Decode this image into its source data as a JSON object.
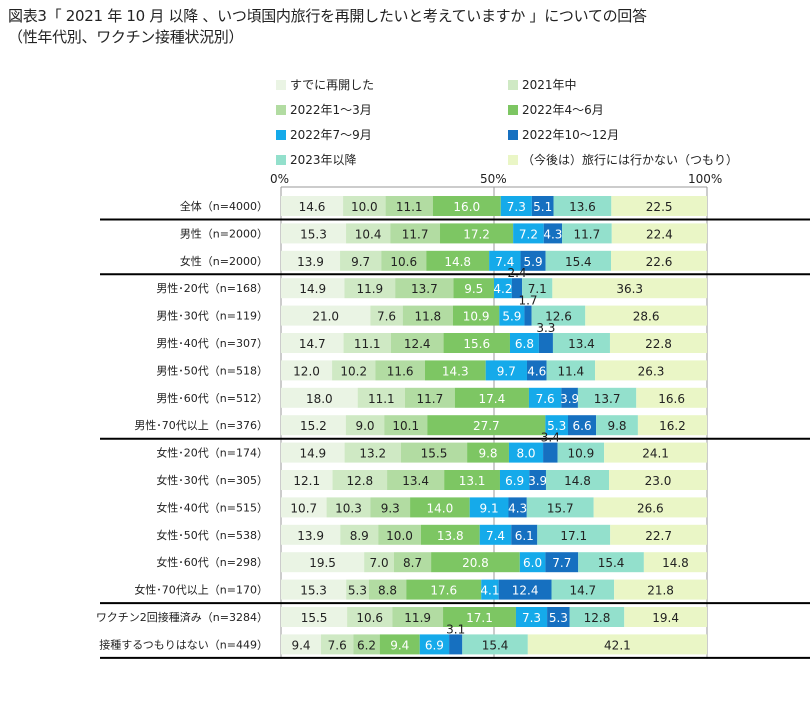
{
  "title": {
    "line1": "図表3「 2021 年 10 月 以降 、いつ頃国内旅行を再開したいと考えていますか 」についての回答",
    "line2": "（性年代別、ワクチン接種状況別）"
  },
  "chart_data": {
    "type": "bar",
    "orientation": "horizontal",
    "stacked": "percent",
    "title": "図表3「 2021 年 10 月 以降 、いつ頃国内旅行を再開したいと考えていますか 」についての回答（性年代別、ワクチン接種状況別）",
    "xlabel": "",
    "ylabel": "",
    "xlim": [
      0,
      100
    ],
    "x_ticks": [
      "0%",
      "50%",
      "100%"
    ],
    "legend_position": "top",
    "categories": [
      "全体（n=4000）",
      "男性（n=2000）",
      "女性（n=2000）",
      "男性･20代（n=168）",
      "男性･30代（n=119）",
      "男性･40代（n=307）",
      "男性･50代（n=518）",
      "男性･60代（n=512）",
      "男性･70代以上（n=376）",
      "女性･20代（n=174）",
      "女性･30代（n=305）",
      "女性･40代（n=515）",
      "女性･50代（n=538）",
      "女性･60代（n=298）",
      "女性･70代以上（n=170）",
      "ワクチン2回接種済み（n=3284）",
      "接種するつもりはない（n=449）"
    ],
    "group_separators_after": [
      0,
      2,
      8,
      14,
      16
    ],
    "series": [
      {
        "name": "すでに再開した",
        "color": "#eaf4e4",
        "label_color": "#222222",
        "values": [
          14.6,
          15.3,
          13.9,
          14.9,
          21.0,
          14.7,
          12.0,
          18.0,
          15.2,
          14.9,
          12.1,
          10.7,
          13.9,
          19.5,
          15.3,
          15.5,
          9.4
        ]
      },
      {
        "name": "2021年中",
        "color": "#cfe9c4",
        "label_color": "#222222",
        "values": [
          10.0,
          10.4,
          9.7,
          11.9,
          7.6,
          11.1,
          10.2,
          11.1,
          9.0,
          13.2,
          12.8,
          10.3,
          8.9,
          7.0,
          5.3,
          10.6,
          7.6
        ]
      },
      {
        "name": "2022年1～3月",
        "color": "#b2dca2",
        "label_color": "#222222",
        "values": [
          11.1,
          11.7,
          10.6,
          13.7,
          11.8,
          12.4,
          11.6,
          11.7,
          10.1,
          15.5,
          13.4,
          9.3,
          10.0,
          8.7,
          8.8,
          11.9,
          6.2
        ]
      },
      {
        "name": "2022年4～6月",
        "color": "#7dc663",
        "label_color": "#ffffff",
        "values": [
          16.0,
          17.2,
          14.8,
          9.5,
          10.9,
          15.6,
          14.3,
          17.4,
          27.7,
          9.8,
          13.1,
          14.0,
          13.8,
          20.8,
          17.6,
          17.1,
          9.4
        ]
      },
      {
        "name": "2022年7～9月",
        "color": "#15aaea",
        "label_color": "#ffffff",
        "values": [
          7.3,
          7.2,
          7.4,
          4.2,
          5.9,
          6.8,
          9.7,
          7.6,
          5.3,
          8.0,
          6.9,
          9.1,
          7.4,
          6.0,
          4.1,
          7.3,
          6.9
        ]
      },
      {
        "name": "2022年10～12月",
        "color": "#1670c0",
        "label_color": "#ffffff",
        "values": [
          5.1,
          4.3,
          5.9,
          2.4,
          1.7,
          3.3,
          4.6,
          3.9,
          6.6,
          3.4,
          3.9,
          4.3,
          6.1,
          7.7,
          12.4,
          5.3,
          3.1
        ]
      },
      {
        "name": "2023年以降",
        "color": "#93e0cc",
        "label_color": "#222222",
        "values": [
          13.6,
          11.7,
          15.4,
          7.1,
          12.6,
          13.4,
          11.4,
          13.7,
          9.8,
          10.9,
          14.8,
          15.7,
          17.1,
          15.4,
          14.7,
          12.8,
          15.4
        ]
      },
      {
        "name": "（今後は）旅行には行かない（つもり）",
        "color": "#eaf6c6",
        "label_color": "#222222",
        "values": [
          22.5,
          22.4,
          22.6,
          36.3,
          28.6,
          22.8,
          26.3,
          16.6,
          16.2,
          24.1,
          23.0,
          26.6,
          22.7,
          14.8,
          21.8,
          19.4,
          42.1
        ]
      }
    ]
  }
}
